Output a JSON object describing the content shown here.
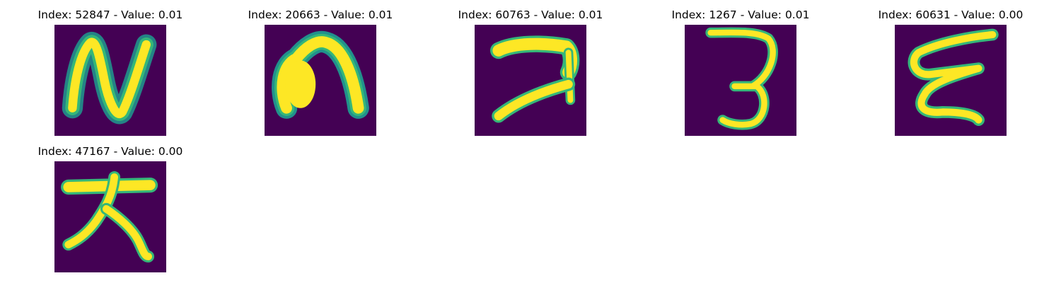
{
  "colors": {
    "background": "#440154",
    "stroke_core": "#fde725",
    "stroke_edge": "#35b779",
    "stroke_halo": "#21918c"
  },
  "panels": [
    {
      "title": "Index: 52847 - Value: 0.01",
      "glyph": "handwritten-N"
    },
    {
      "title": "Index: 20663 - Value: 0.01",
      "glyph": "handwritten-n-arch"
    },
    {
      "title": "Index: 60763 - Value: 0.01",
      "glyph": "handwritten-7-hook"
    },
    {
      "title": "Index: 1267 - Value: 0.01",
      "glyph": "handwritten-3"
    },
    {
      "title": "Index: 60631 - Value: 0.00",
      "glyph": "handwritten-E-script"
    },
    {
      "title": "Index: 47167 - Value: 0.00",
      "glyph": "handwritten-radical"
    }
  ]
}
